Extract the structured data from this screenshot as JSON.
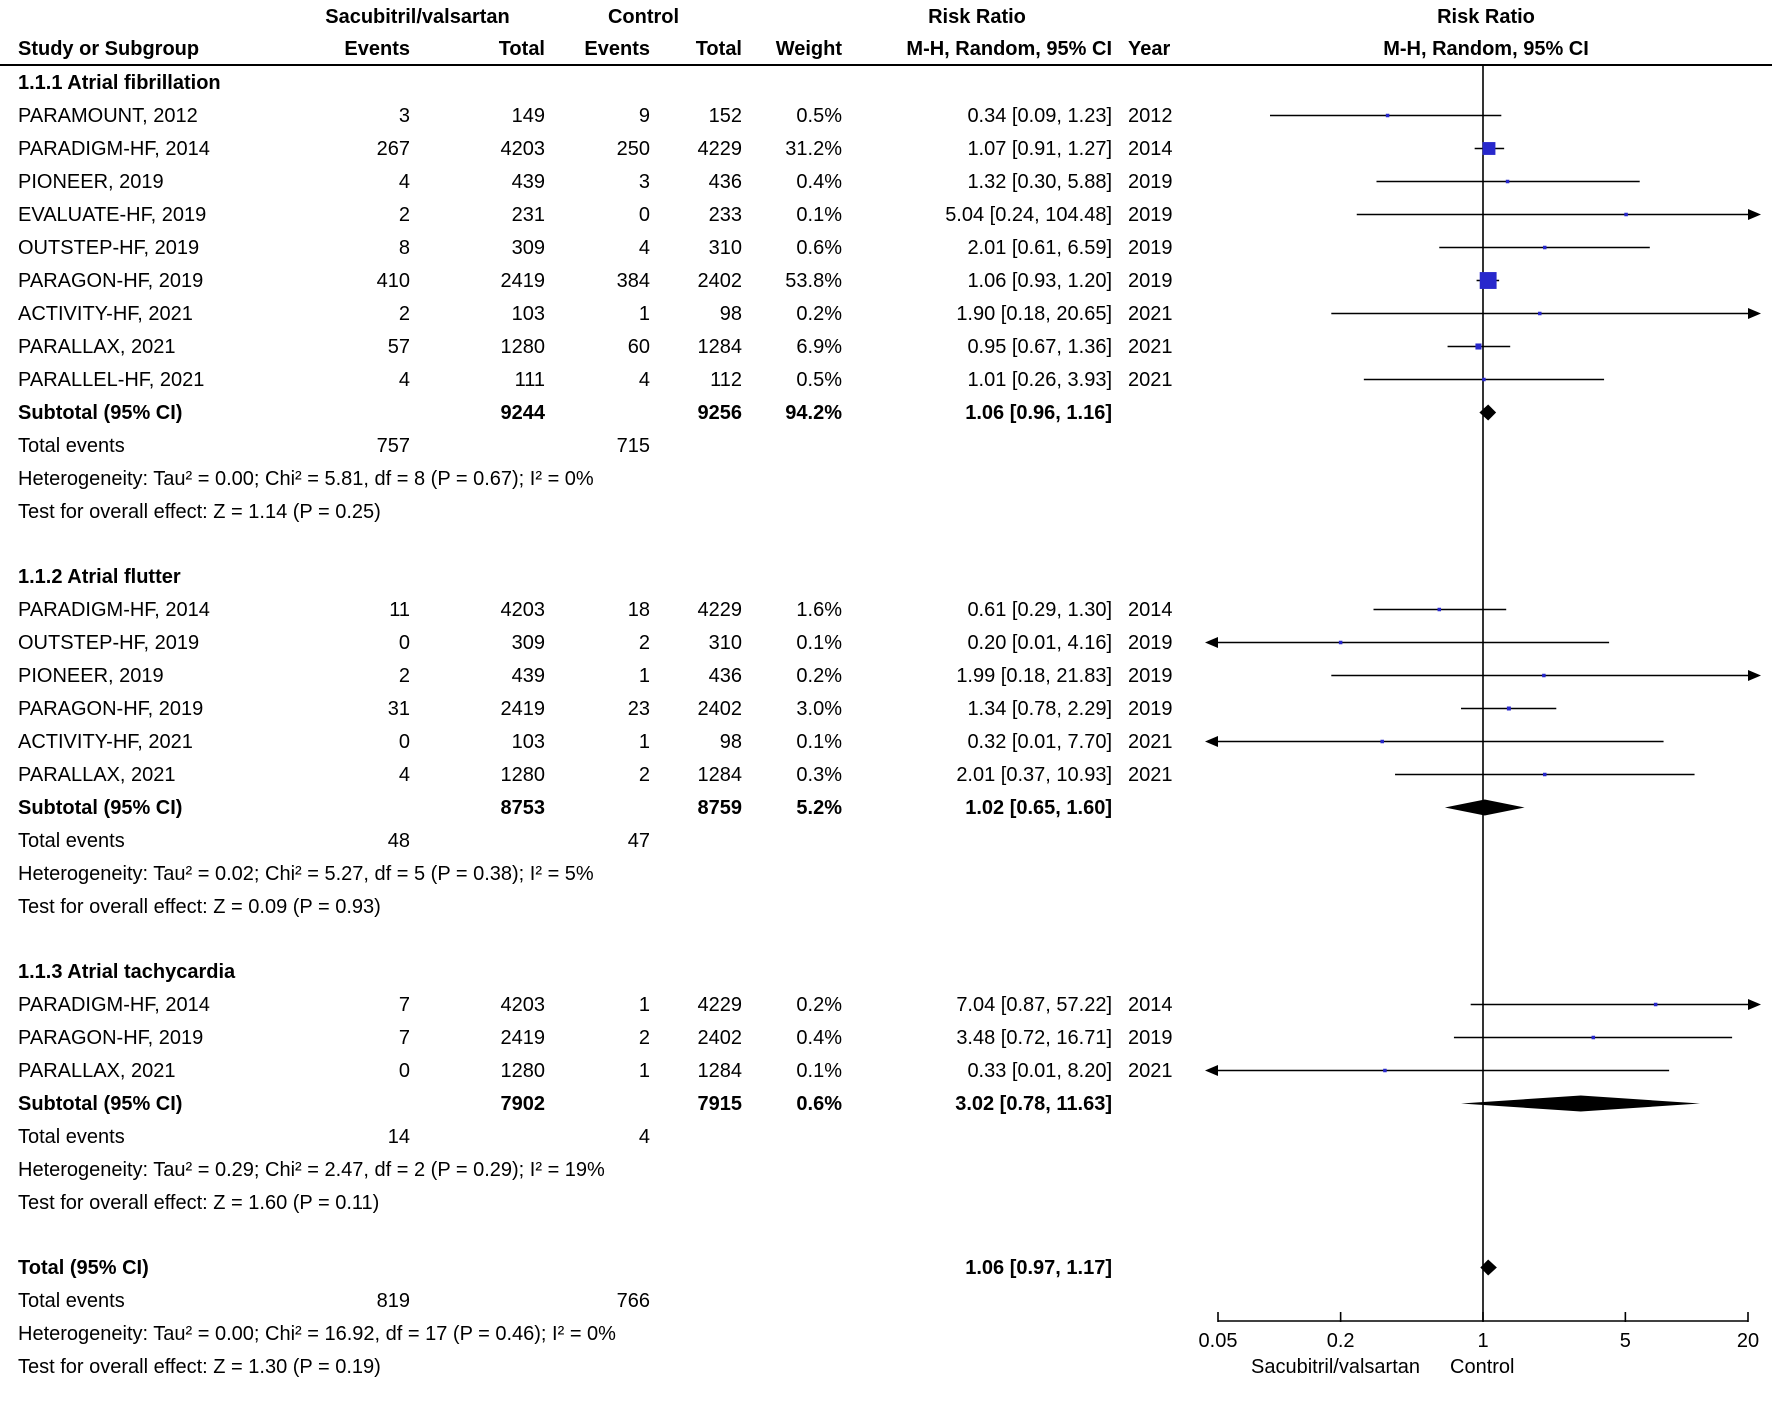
{
  "header": {
    "treatment_group": "Sacubitril/valsartan",
    "control_group": "Control",
    "risk_ratio": "Risk Ratio",
    "study": "Study or Subgroup",
    "events": "Events",
    "total": "Total",
    "weight": "Weight",
    "mh_ci": "M-H, Random, 95% CI",
    "year": "Year"
  },
  "chart_data": {
    "type": "forest",
    "effect_measure": "Risk Ratio",
    "method_label": "M-H, Random, 95% CI",
    "axis": {
      "scale": "log",
      "min": 0.05,
      "max": 20,
      "ticks": [
        0.05,
        0.2,
        1,
        5,
        20
      ],
      "tick_labels": [
        "0.05",
        "0.2",
        "1",
        "5",
        "20"
      ],
      "label_left": "Sacubitril/valsartan",
      "label_right": "Control"
    },
    "style": {
      "marker_color": "#2828CC",
      "line_color": "#000000",
      "diamond_color": "#000000"
    },
    "groups": [
      {
        "title": "1.1.1 Atrial fibrillation",
        "studies": [
          {
            "study": "PARAMOUNT, 2012",
            "e1": "3",
            "t1": "149",
            "e2": "9",
            "t2": "152",
            "weight": "0.5%",
            "rr": "0.34 [0.09, 1.23]",
            "year": "2012",
            "est": 0.34,
            "lo": 0.09,
            "hi": 1.23,
            "w": 0.5
          },
          {
            "study": "PARADIGM-HF, 2014",
            "e1": "267",
            "t1": "4203",
            "e2": "250",
            "t2": "4229",
            "weight": "31.2%",
            "rr": "1.07 [0.91, 1.27]",
            "year": "2014",
            "est": 1.07,
            "lo": 0.91,
            "hi": 1.27,
            "w": 31.2
          },
          {
            "study": "PIONEER, 2019",
            "e1": "4",
            "t1": "439",
            "e2": "3",
            "t2": "436",
            "weight": "0.4%",
            "rr": "1.32 [0.30, 5.88]",
            "year": "2019",
            "est": 1.32,
            "lo": 0.3,
            "hi": 5.88,
            "w": 0.4
          },
          {
            "study": "EVALUATE-HF, 2019",
            "e1": "2",
            "t1": "231",
            "e2": "0",
            "t2": "233",
            "weight": "0.1%",
            "rr": "5.04 [0.24, 104.48]",
            "year": "2019",
            "est": 5.04,
            "lo": 0.24,
            "hi": 104.48,
            "w": 0.1
          },
          {
            "study": "OUTSTEP-HF, 2019",
            "e1": "8",
            "t1": "309",
            "e2": "4",
            "t2": "310",
            "weight": "0.6%",
            "rr": "2.01 [0.61, 6.59]",
            "year": "2019",
            "est": 2.01,
            "lo": 0.61,
            "hi": 6.59,
            "w": 0.6
          },
          {
            "study": "PARAGON-HF, 2019",
            "e1": "410",
            "t1": "2419",
            "e2": "384",
            "t2": "2402",
            "weight": "53.8%",
            "rr": "1.06 [0.93, 1.20]",
            "year": "2019",
            "est": 1.06,
            "lo": 0.93,
            "hi": 1.2,
            "w": 53.8
          },
          {
            "study": "ACTIVITY-HF, 2021",
            "e1": "2",
            "t1": "103",
            "e2": "1",
            "t2": "98",
            "weight": "0.2%",
            "rr": "1.90 [0.18, 20.65]",
            "year": "2021",
            "est": 1.9,
            "lo": 0.18,
            "hi": 20.65,
            "w": 0.2
          },
          {
            "study": "PARALLAX, 2021",
            "e1": "57",
            "t1": "1280",
            "e2": "60",
            "t2": "1284",
            "weight": "6.9%",
            "rr": "0.95 [0.67, 1.36]",
            "year": "2021",
            "est": 0.95,
            "lo": 0.67,
            "hi": 1.36,
            "w": 6.9
          },
          {
            "study": "PARALLEL-HF, 2021",
            "e1": "4",
            "t1": "111",
            "e2": "4",
            "t2": "112",
            "weight": "0.5%",
            "rr": "1.01 [0.26, 3.93]",
            "year": "2021",
            "est": 1.01,
            "lo": 0.26,
            "hi": 3.93,
            "w": 0.5
          }
        ],
        "subtotal": {
          "label": "Subtotal (95% CI)",
          "t1": "9244",
          "t2": "9256",
          "weight": "94.2%",
          "rr": "1.06 [0.96, 1.16]",
          "est": 1.06,
          "lo": 0.96,
          "hi": 1.16
        },
        "total_events": {
          "label": "Total events",
          "e1": "757",
          "e2": "715"
        },
        "heterogeneity": "Heterogeneity: Tau² = 0.00; Chi² = 5.81, df = 8 (P = 0.67); I² = 0%",
        "effect_test": "Test for overall effect: Z = 1.14 (P = 0.25)"
      },
      {
        "title": "1.1.2 Atrial flutter",
        "studies": [
          {
            "study": "PARADIGM-HF, 2014",
            "e1": "11",
            "t1": "4203",
            "e2": "18",
            "t2": "4229",
            "weight": "1.6%",
            "rr": "0.61 [0.29, 1.30]",
            "year": "2014",
            "est": 0.61,
            "lo": 0.29,
            "hi": 1.3,
            "w": 1.6
          },
          {
            "study": "OUTSTEP-HF, 2019",
            "e1": "0",
            "t1": "309",
            "e2": "2",
            "t2": "310",
            "weight": "0.1%",
            "rr": "0.20 [0.01, 4.16]",
            "year": "2019",
            "est": 0.2,
            "lo": 0.01,
            "hi": 4.16,
            "w": 0.1
          },
          {
            "study": "PIONEER, 2019",
            "e1": "2",
            "t1": "439",
            "e2": "1",
            "t2": "436",
            "weight": "0.2%",
            "rr": "1.99 [0.18, 21.83]",
            "year": "2019",
            "est": 1.99,
            "lo": 0.18,
            "hi": 21.83,
            "w": 0.2
          },
          {
            "study": "PARAGON-HF, 2019",
            "e1": "31",
            "t1": "2419",
            "e2": "23",
            "t2": "2402",
            "weight": "3.0%",
            "rr": "1.34 [0.78, 2.29]",
            "year": "2019",
            "est": 1.34,
            "lo": 0.78,
            "hi": 2.29,
            "w": 3.0
          },
          {
            "study": "ACTIVITY-HF, 2021",
            "e1": "0",
            "t1": "103",
            "e2": "1",
            "t2": "98",
            "weight": "0.1%",
            "rr": "0.32 [0.01, 7.70]",
            "year": "2021",
            "est": 0.32,
            "lo": 0.01,
            "hi": 7.7,
            "w": 0.1
          },
          {
            "study": "PARALLAX, 2021",
            "e1": "4",
            "t1": "1280",
            "e2": "2",
            "t2": "1284",
            "weight": "0.3%",
            "rr": "2.01 [0.37, 10.93]",
            "year": "2021",
            "est": 2.01,
            "lo": 0.37,
            "hi": 10.93,
            "w": 0.3
          }
        ],
        "subtotal": {
          "label": "Subtotal (95% CI)",
          "t1": "8753",
          "t2": "8759",
          "weight": "5.2%",
          "rr": "1.02 [0.65, 1.60]",
          "est": 1.02,
          "lo": 0.65,
          "hi": 1.6
        },
        "total_events": {
          "label": "Total events",
          "e1": "48",
          "e2": "47"
        },
        "heterogeneity": "Heterogeneity: Tau² = 0.02; Chi² = 5.27, df = 5 (P = 0.38); I² = 5%",
        "effect_test": "Test for overall effect: Z = 0.09 (P = 0.93)"
      },
      {
        "title": "1.1.3 Atrial tachycardia",
        "studies": [
          {
            "study": "PARADIGM-HF, 2014",
            "e1": "7",
            "t1": "4203",
            "e2": "1",
            "t2": "4229",
            "weight": "0.2%",
            "rr": "7.04 [0.87, 57.22]",
            "year": "2014",
            "est": 7.04,
            "lo": 0.87,
            "hi": 57.22,
            "w": 0.2
          },
          {
            "study": "PARAGON-HF, 2019",
            "e1": "7",
            "t1": "2419",
            "e2": "2",
            "t2": "2402",
            "weight": "0.4%",
            "rr": "3.48 [0.72, 16.71]",
            "year": "2019",
            "est": 3.48,
            "lo": 0.72,
            "hi": 16.71,
            "w": 0.4
          },
          {
            "study": "PARALLAX, 2021",
            "e1": "0",
            "t1": "1280",
            "e2": "1",
            "t2": "1284",
            "weight": "0.1%",
            "rr": "0.33 [0.01, 8.20]",
            "year": "2021",
            "est": 0.33,
            "lo": 0.01,
            "hi": 8.2,
            "w": 0.1
          }
        ],
        "subtotal": {
          "label": "Subtotal (95% CI)",
          "t1": "7902",
          "t2": "7915",
          "weight": "0.6%",
          "rr": "3.02 [0.78, 11.63]",
          "est": 3.02,
          "lo": 0.78,
          "hi": 11.63
        },
        "total_events": {
          "label": "Total events",
          "e1": "14",
          "e2": "4"
        },
        "heterogeneity": "Heterogeneity: Tau² = 0.29; Chi² = 2.47, df = 2 (P = 0.29); I² = 19%",
        "effect_test": "Test for overall effect: Z = 1.60 (P = 0.11)"
      }
    ],
    "overall": {
      "label": "Total (95% CI)",
      "rr": "1.06 [0.97, 1.17]",
      "est": 1.06,
      "lo": 0.97,
      "hi": 1.17,
      "total_events": {
        "label": "Total events",
        "e1": "819",
        "e2": "766"
      },
      "heterogeneity": "Heterogeneity: Tau² = 0.00; Chi² = 16.92, df = 17 (P = 0.46); I² = 0%",
      "effect_test": "Test for overall effect: Z = 1.30 (P = 0.19)"
    }
  }
}
